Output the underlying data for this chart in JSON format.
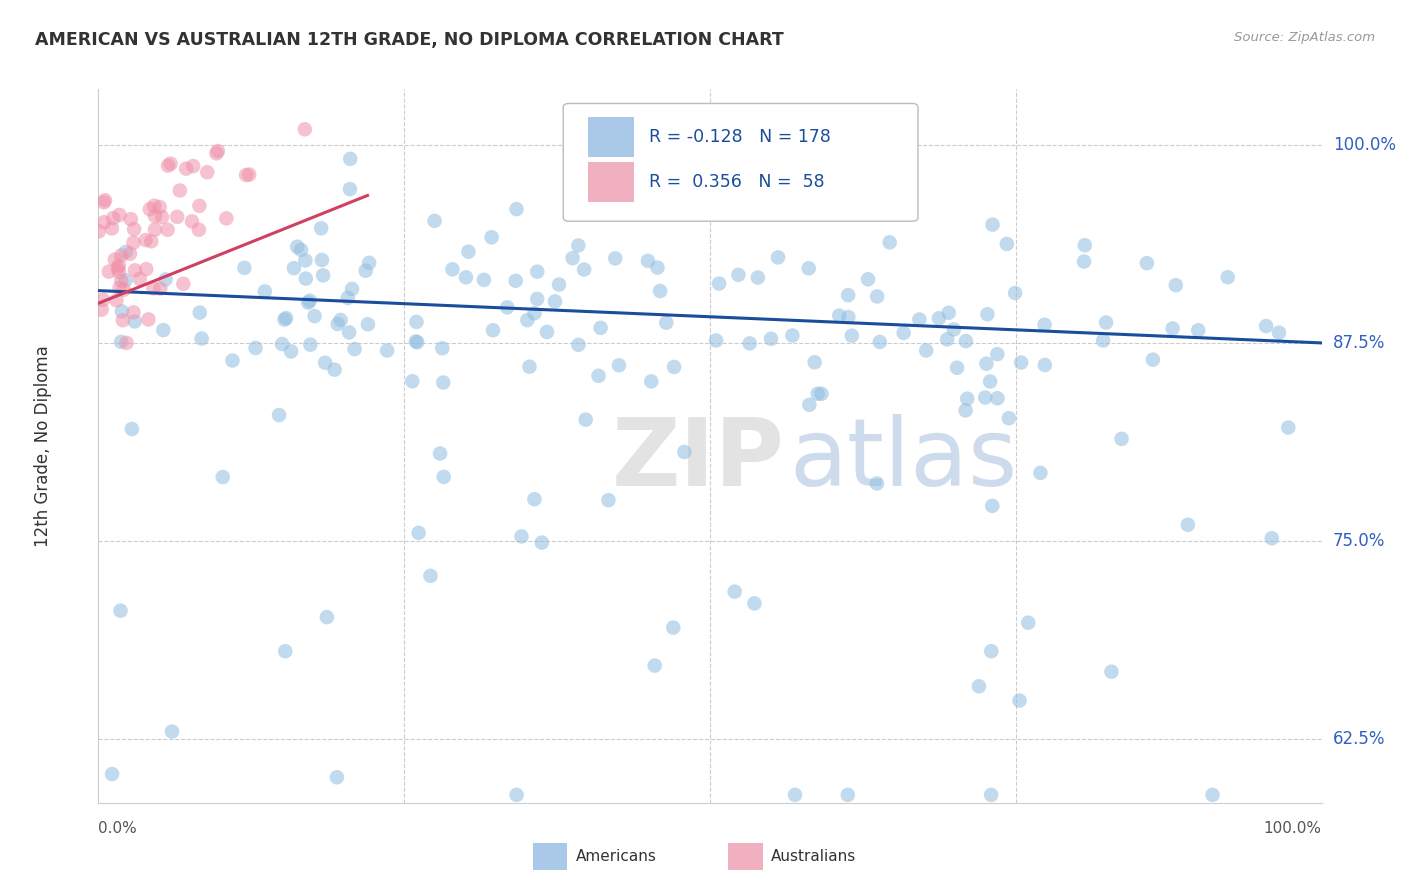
{
  "title": "AMERICAN VS AUSTRALIAN 12TH GRADE, NO DIPLOMA CORRELATION CHART",
  "source": "Source: ZipAtlas.com",
  "ylabel": "12th Grade, No Diploma",
  "yticks": [
    "62.5%",
    "75.0%",
    "87.5%",
    "100.0%"
  ],
  "ytick_vals": [
    0.625,
    0.75,
    0.875,
    1.0
  ],
  "xlim": [
    0.0,
    1.0
  ],
  "ylim": [
    0.585,
    1.035
  ],
  "legend_color1": "#aac8e8",
  "legend_color2": "#f0b0c0",
  "watermark_zip": "ZIP",
  "watermark_atlas": "atlas",
  "american_color": "#90bce0",
  "australian_color": "#f090a8",
  "american_trend_color": "#1a4e9c",
  "australian_trend_color": "#d04060",
  "american_trend_x": [
    0.0,
    1.0
  ],
  "american_trend_y": [
    0.908,
    0.875
  ],
  "australian_trend_x": [
    0.0,
    0.22
  ],
  "australian_trend_y": [
    0.9,
    0.968
  ],
  "grid_color": "#cccccc",
  "spine_color": "#cccccc",
  "ytick_color": "#3060c0",
  "xtick_left": "0.0%",
  "xtick_right": "100.0%"
}
